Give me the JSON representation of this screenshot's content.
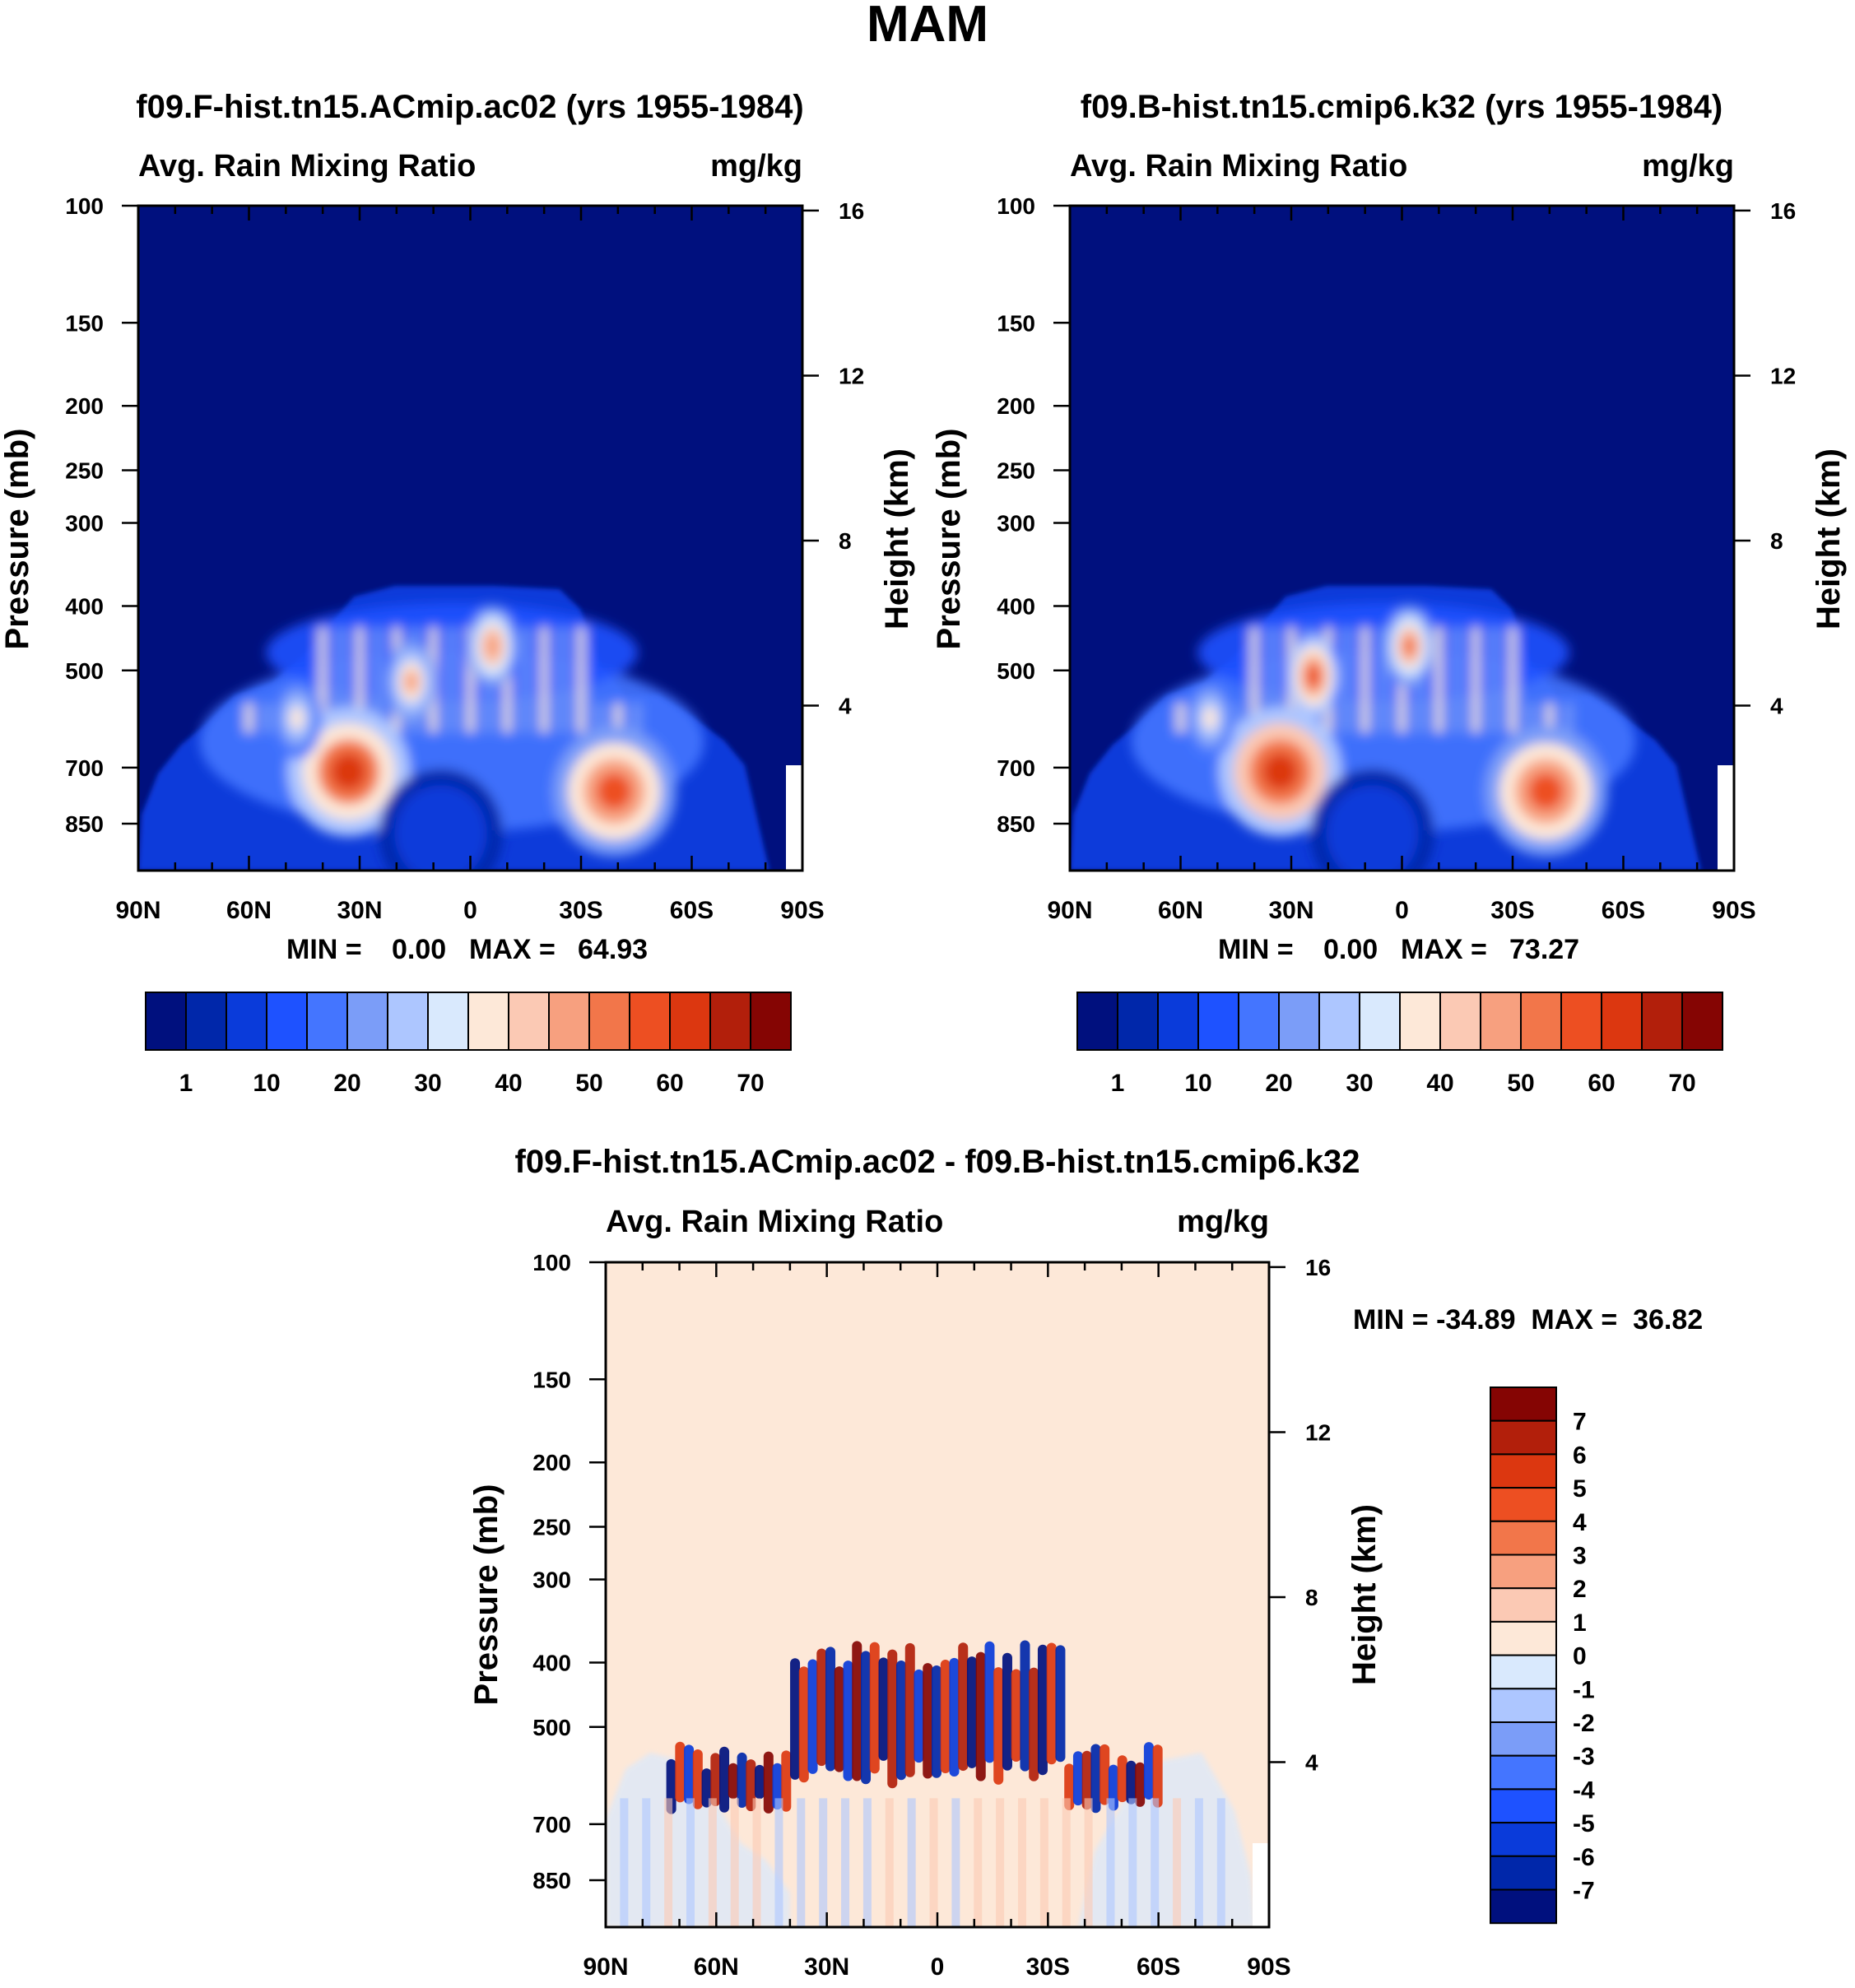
{
  "page_title": "MAM",
  "colors": {
    "abs_scale": [
      "#00107e",
      "#0027aa",
      "#0a3bda",
      "#1e52ff",
      "#4475ff",
      "#7b9df8",
      "#adc6ff",
      "#d9e9fd",
      "#fde8d8",
      "#fbc9b4",
      "#f7a07f",
      "#f2764a",
      "#ed4f22",
      "#dc3710",
      "#b21f0b",
      "#850503"
    ],
    "diff_scale": [
      "#00107e",
      "#0027aa",
      "#0a3bda",
      "#1e52ff",
      "#4475ff",
      "#7b9df8",
      "#adc6ff",
      "#d9e9fd",
      "#fde8d8",
      "#fbc9b4",
      "#f7a07f",
      "#f2764a",
      "#ed4f22",
      "#dc3710",
      "#b21f0b",
      "#850503"
    ]
  },
  "chart_data": [
    {
      "type": "heatmap",
      "title": "f09.F-hist.tn15.ACmip.ac02 (yrs 1955-1984)",
      "left_label": "Avg. Rain Mixing Ratio",
      "right_label": "mg/kg",
      "ylabel": "Pressure (mb)",
      "ylabel_right": "Height (km)",
      "xticks": [
        "90N",
        "60N",
        "30N",
        "0",
        "30S",
        "60S",
        "90S"
      ],
      "yticks": [
        "100",
        "150",
        "200",
        "250",
        "300",
        "400",
        "500",
        "700",
        "850"
      ],
      "yticks_right": [
        "16",
        "12",
        "8",
        "4"
      ],
      "stats": {
        "min_label": "MIN =",
        "min_value": "0.00",
        "max_label": "MAX =",
        "max_value": "64.93"
      },
      "colorbar_labels": [
        "1",
        "10",
        "20",
        "30",
        "40",
        "50",
        "60",
        "70"
      ],
      "features": [
        {
          "lat": -39,
          "level": 760,
          "value": 55
        },
        {
          "lat": 33,
          "level": 710,
          "value": 60
        },
        {
          "lat": 16,
          "level": 520,
          "value": 45
        },
        {
          "lat": -6,
          "level": 460,
          "value": 48
        },
        {
          "lat": 47,
          "level": 590,
          "value": 35
        },
        {
          "lat": 8,
          "level": 880,
          "value": 8
        }
      ]
    },
    {
      "type": "heatmap",
      "title": "f09.B-hist.tn15.cmip6.k32 (yrs 1955-1984)",
      "left_label": "Avg. Rain Mixing Ratio",
      "right_label": "mg/kg",
      "ylabel": "Pressure (mb)",
      "ylabel_right": "Height (km)",
      "xticks": [
        "90N",
        "60N",
        "30N",
        "0",
        "30S",
        "60S",
        "90S"
      ],
      "yticks": [
        "100",
        "150",
        "200",
        "250",
        "300",
        "400",
        "500",
        "700",
        "850"
      ],
      "yticks_right": [
        "16",
        "12",
        "8",
        "4"
      ],
      "stats": {
        "min_label": "MIN =",
        "min_value": "0.00",
        "max_label": "MAX =",
        "max_value": "73.27"
      },
      "colorbar_labels": [
        "1",
        "10",
        "20",
        "30",
        "40",
        "50",
        "60",
        "70"
      ],
      "features": [
        {
          "lat": -39,
          "level": 760,
          "value": 55
        },
        {
          "lat": 33,
          "level": 710,
          "value": 62
        },
        {
          "lat": 24,
          "level": 510,
          "value": 58
        },
        {
          "lat": -2,
          "level": 460,
          "value": 50
        },
        {
          "lat": 52,
          "level": 590,
          "value": 35
        },
        {
          "lat": 8,
          "level": 880,
          "value": 8
        }
      ]
    },
    {
      "type": "heatmap",
      "title": "f09.F-hist.tn15.ACmip.ac02 - f09.B-hist.tn15.cmip6.k32",
      "left_label": "Avg. Rain Mixing Ratio",
      "right_label": "mg/kg",
      "ylabel": "Pressure (mb)",
      "ylabel_right": "Height (km)",
      "xticks": [
        "90N",
        "60N",
        "30N",
        "0",
        "30S",
        "60S",
        "90S"
      ],
      "yticks": [
        "100",
        "150",
        "200",
        "250",
        "300",
        "400",
        "500",
        "700",
        "850"
      ],
      "yticks_right": [
        "16",
        "12",
        "8",
        "4"
      ],
      "stats_text": "MIN = -34.89  MAX =  36.82",
      "colorbar_labels": [
        "7",
        "6",
        "5",
        "4",
        "3",
        "2",
        "1",
        "0",
        "-1",
        "-2",
        "-3",
        "-4",
        "-5",
        "-6",
        "-7"
      ],
      "background_value": 0.5
    }
  ]
}
